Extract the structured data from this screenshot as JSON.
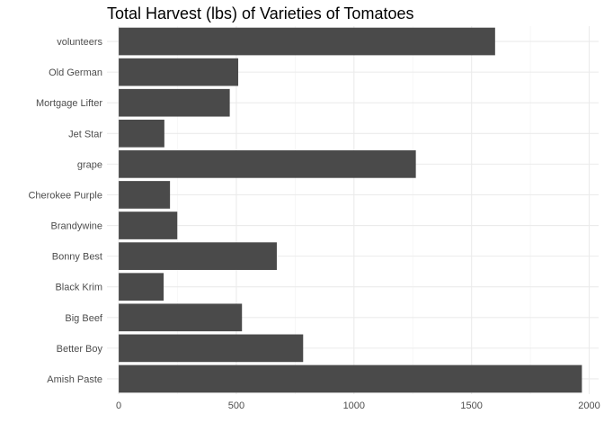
{
  "chart_data": {
    "type": "bar",
    "orientation": "horizontal",
    "title": "Total Harvest (lbs) of Varieties of Tomatoes",
    "xlabel": "",
    "ylabel": "",
    "categories": [
      "Amish Paste",
      "Better Boy",
      "Big Beef",
      "Black Krim",
      "Bonny Best",
      "Brandywine",
      "Cherokee Purple",
      "grape",
      "Jet Star",
      "Mortgage Lifter",
      "Old German",
      "volunteers"
    ],
    "values": [
      1969,
      784,
      524,
      191,
      672,
      249,
      218,
      1263,
      194,
      472,
      508,
      1600
    ],
    "xlim": [
      -50,
      2040
    ],
    "x_ticks": [
      0,
      500,
      1000,
      1500,
      2000
    ],
    "x_tick_labels": [
      "0",
      "500",
      "1000",
      "1500",
      "2000"
    ],
    "bar_color": "#4a4a4a",
    "grid": true,
    "legend": "none"
  }
}
